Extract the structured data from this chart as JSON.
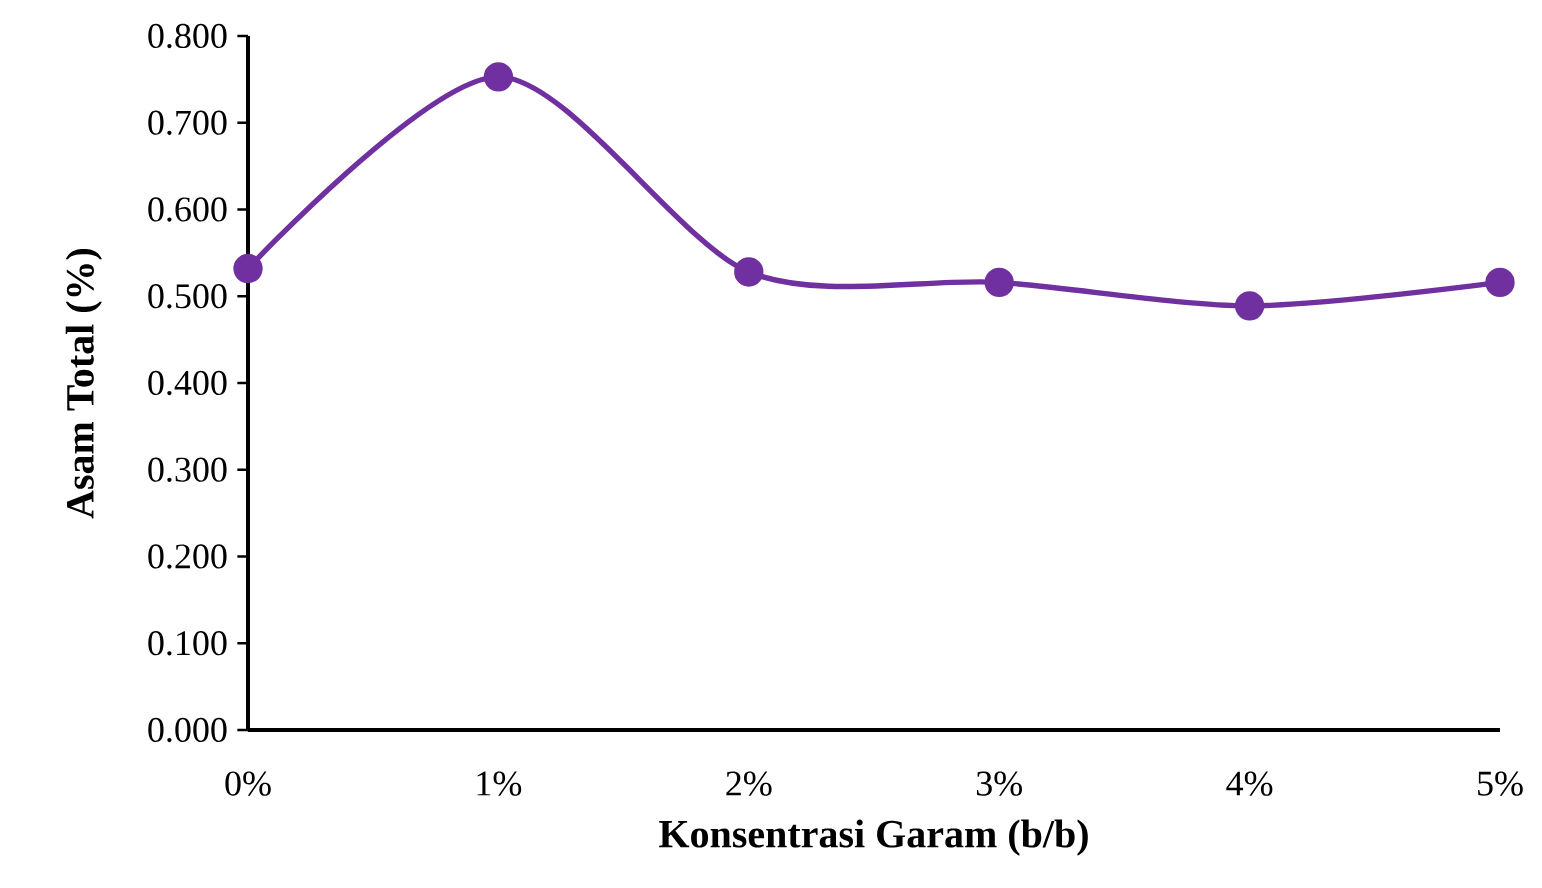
{
  "chart_data": {
    "type": "line",
    "xlabel": "Konsentrasi Garam (b/b)",
    "ylabel": "Asam Total (%)",
    "categories": [
      "0%",
      "1%",
      "2%",
      "3%",
      "4%",
      "5%"
    ],
    "series": [
      {
        "color": "#7030a0",
        "values": [
          0.532,
          0.753,
          0.528,
          0.516,
          0.489,
          0.516
        ]
      }
    ],
    "ylim": [
      0,
      0.8
    ],
    "yticks": [
      {
        "value": 0,
        "label": "0.000"
      },
      {
        "value": 0.1,
        "label": "0.100"
      },
      {
        "value": 0.2,
        "label": "0.200"
      },
      {
        "value": 0.3,
        "label": "0.300"
      },
      {
        "value": 0.4,
        "label": "0.400"
      },
      {
        "value": 0.5,
        "label": "0.500"
      },
      {
        "value": 0.6,
        "label": "0.600"
      },
      {
        "value": 0.7,
        "label": "0.700"
      },
      {
        "value": 0.8,
        "label": "0.800"
      }
    ],
    "grid": false,
    "marker": "circle",
    "line_style": "solid"
  }
}
